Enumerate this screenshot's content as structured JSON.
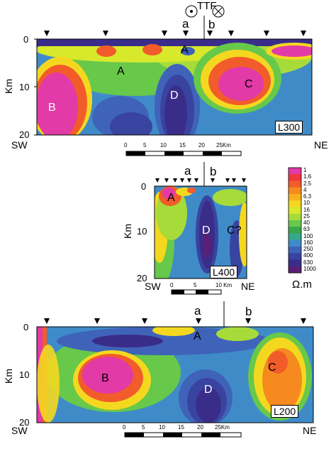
{
  "fault": {
    "label": "TTF",
    "left_symbol": "⊙",
    "right_symbol": "⊗"
  },
  "depth_axis": {
    "title": "Km",
    "ticks": [
      "0",
      "10",
      "20"
    ]
  },
  "profiles": [
    {
      "id": "L300",
      "tag": "L300",
      "left_end": "SW",
      "right_end": "NE",
      "markers": [
        "a",
        "b"
      ],
      "zones": [
        "A",
        "A",
        "B",
        "C",
        "D"
      ],
      "scale": {
        "ticks": [
          "0",
          "5",
          "10",
          "15",
          "20",
          "25Km"
        ]
      }
    },
    {
      "id": "L400",
      "tag": "L400",
      "left_end": "SW",
      "right_end": "NE",
      "markers": [
        "a",
        "b"
      ],
      "zones": [
        "A",
        "D",
        "C?"
      ],
      "scale": {
        "ticks": [
          "0",
          "5",
          "10 Km"
        ]
      }
    },
    {
      "id": "L200",
      "tag": "L200",
      "left_end": "SW",
      "right_end": "NE",
      "markers": [
        "a",
        "b"
      ],
      "zones": [
        "A",
        "B",
        "C",
        "D"
      ],
      "scale": {
        "ticks": [
          "0",
          "5",
          "10",
          "15",
          "20",
          "25Km"
        ]
      }
    }
  ],
  "colorbar": {
    "unit": "Ω.m",
    "values": [
      "1",
      "1.6",
      "2.5",
      "4",
      "6.3",
      "10",
      "16",
      "25",
      "40",
      "63",
      "100",
      "160",
      "250",
      "400",
      "630",
      "1000"
    ],
    "colors": [
      "#e23aa6",
      "#f0383e",
      "#f25c2a",
      "#f68a1e",
      "#f6b21e",
      "#f4d820",
      "#d8e82a",
      "#a6db3a",
      "#67c84a",
      "#3aa64c",
      "#37a78c",
      "#3f8bc8",
      "#3f63b8",
      "#3944a0",
      "#3a2d8a",
      "#5a1f76"
    ]
  }
}
